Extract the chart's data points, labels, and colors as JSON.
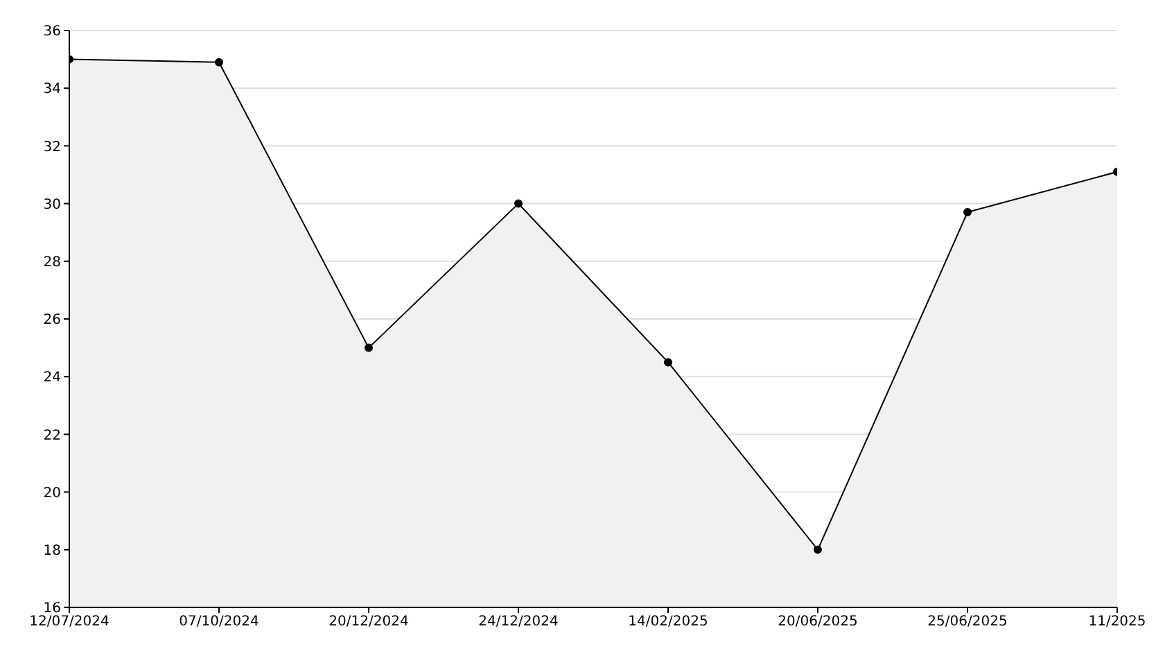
{
  "chart_data": {
    "type": "area",
    "categories": [
      "12/07/2024",
      "07/10/2024",
      "20/12/2024",
      "24/12/2024",
      "14/02/2025",
      "20/06/2025",
      "25/06/2025",
      "11/2025"
    ],
    "series": [
      {
        "color": "#000000",
        "values": [
          35,
          34.9,
          25,
          30,
          24.5,
          18,
          29.7,
          31.1
        ]
      }
    ],
    "ylim": [
      16,
      36
    ],
    "yticks": [
      16,
      18,
      20,
      22,
      24,
      26,
      28,
      30,
      32,
      34,
      36
    ],
    "grid": "y",
    "marker": "circle",
    "line_style": "solid"
  }
}
